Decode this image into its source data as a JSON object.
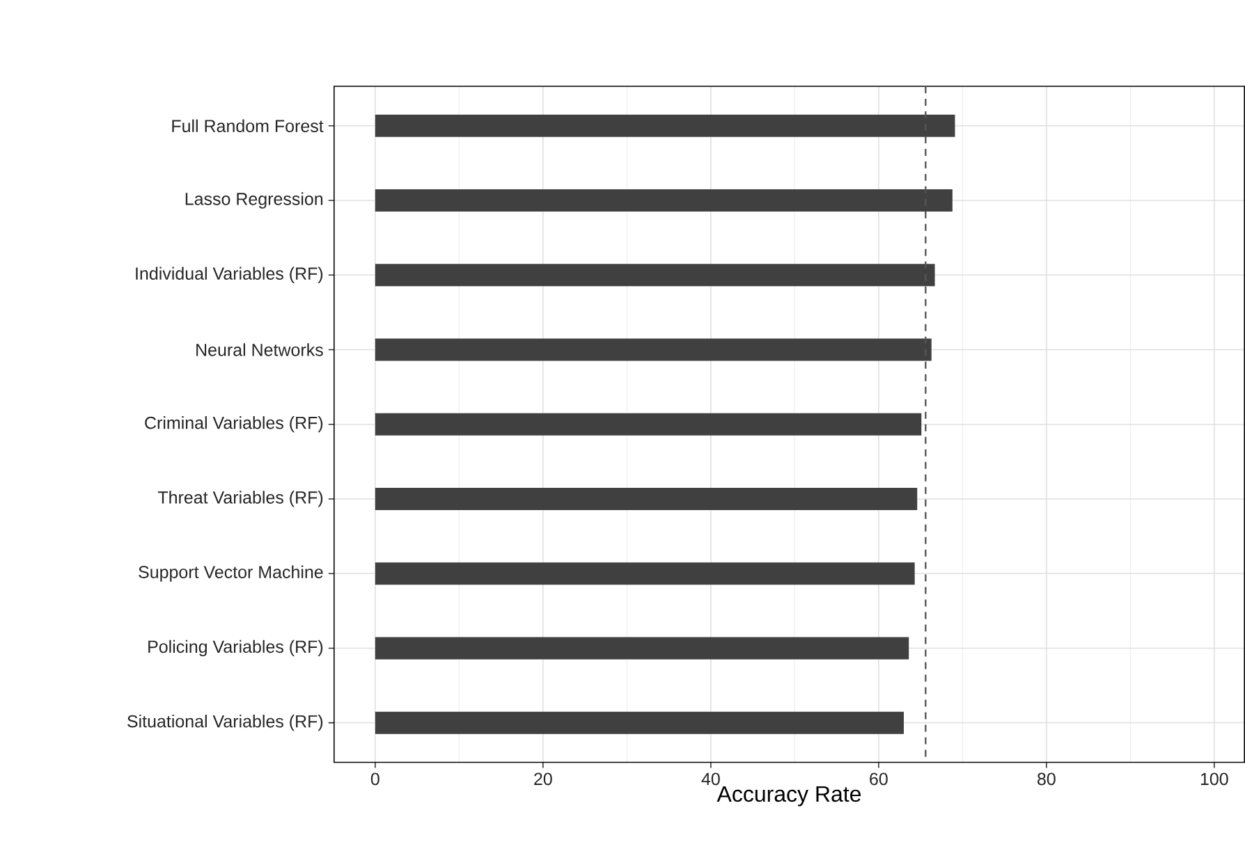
{
  "chart_data": {
    "type": "bar",
    "orientation": "horizontal",
    "xlabel": "Accuracy Rate",
    "categories": [
      "Full Random Forest",
      "Lasso Regression",
      "Individual Variables (RF)",
      "Neural Networks",
      "Criminal Variables (RF)",
      "Threat Variables (RF)",
      "Support Vector Machine",
      "Policing Variables (RF)",
      "Situational Variables (RF)"
    ],
    "values": [
      69.1,
      68.8,
      66.7,
      66.3,
      65.1,
      64.6,
      64.3,
      63.6,
      63.0
    ],
    "color": "#404040",
    "xlim": [
      -4.9,
      103.6
    ],
    "xticks": [
      0,
      20,
      40,
      60,
      80,
      100
    ],
    "grid": true,
    "ref_lines": [
      {
        "axis": "x",
        "value": 65.6,
        "color": "#555555",
        "line_style": "dashed"
      }
    ]
  }
}
